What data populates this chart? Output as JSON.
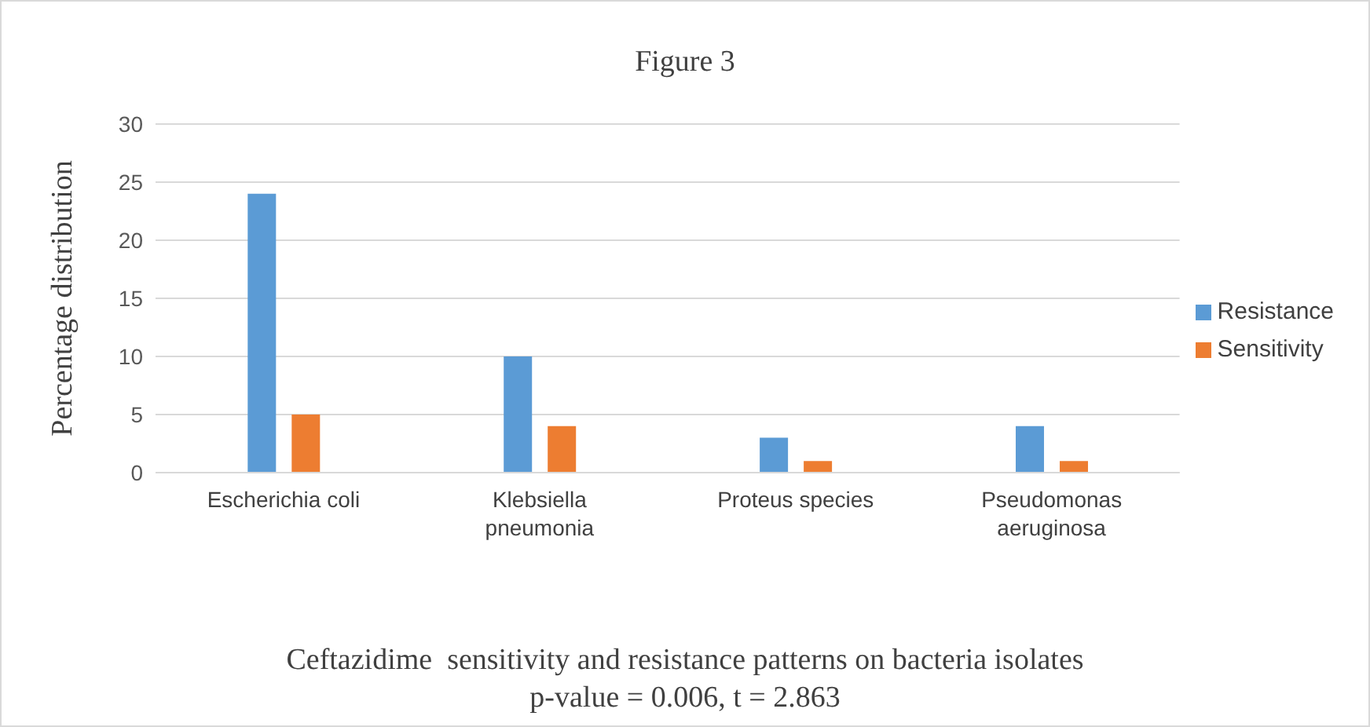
{
  "chart_data": {
    "type": "bar",
    "title": "Figure 3",
    "ylabel": "Percentage distribution",
    "categories": [
      "Escherichia coli",
      "Klebsiella pneumonia",
      "Proteus species",
      "Pseudomonas aeruginosa"
    ],
    "series": [
      {
        "name": "Resistance",
        "color": "#5b9bd5",
        "values": [
          24,
          10,
          3,
          4
        ]
      },
      {
        "name": "Sensitivity",
        "color": "#ed7d31",
        "values": [
          5,
          4,
          1,
          1
        ]
      }
    ],
    "ylim": [
      0,
      30
    ],
    "yticks": [
      0,
      5,
      10,
      15,
      20,
      25,
      30
    ],
    "grid": "y",
    "legend": "right",
    "annotations": [
      "Ceftazidime  sensitivity and resistance patterns on bacteria isolates",
      "p-value = 0.006, t = 2.863"
    ]
  }
}
